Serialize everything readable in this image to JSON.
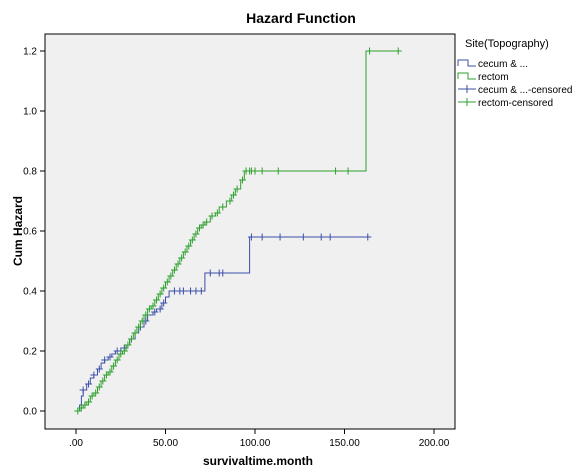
{
  "chart_data": {
    "type": "line",
    "title": "Hazard Function",
    "xlabel": "survivaltime.month",
    "ylabel": "Cum Hazard",
    "xlim": [
      0,
      200
    ],
    "ylim": [
      0,
      1.2
    ],
    "x_ticks": [
      ".00",
      "50.00",
      "100.00",
      "150.00",
      "200.00"
    ],
    "y_ticks": [
      "0.0",
      "0.2",
      "0.4",
      "0.6",
      "0.8",
      "1.0",
      "1.2"
    ],
    "x_tick_values": [
      0,
      50,
      100,
      150,
      200
    ],
    "y_tick_values": [
      0,
      0.2,
      0.4,
      0.6,
      0.8,
      1.0,
      1.2
    ],
    "grid": false,
    "plot_background": "#f0f0f0",
    "legend": {
      "title": "Site(Topography)",
      "placement": "right",
      "entries": [
        "cecum & ...",
        "rectom",
        "cecum & ...-censored",
        "rectom-censored"
      ]
    },
    "series": [
      {
        "name": "cecum & ...",
        "color": "#3c4fa8",
        "step": true,
        "points": [
          [
            0,
            0
          ],
          [
            2,
            0.02
          ],
          [
            3,
            0.05
          ],
          [
            4,
            0.07
          ],
          [
            6,
            0.09
          ],
          [
            8,
            0.11
          ],
          [
            10,
            0.12
          ],
          [
            12,
            0.14
          ],
          [
            14,
            0.16
          ],
          [
            16,
            0.17
          ],
          [
            18,
            0.18
          ],
          [
            20,
            0.19
          ],
          [
            22,
            0.2
          ],
          [
            25,
            0.21
          ],
          [
            28,
            0.22
          ],
          [
            30,
            0.24
          ],
          [
            33,
            0.26
          ],
          [
            35,
            0.28
          ],
          [
            38,
            0.3
          ],
          [
            40,
            0.32
          ],
          [
            43,
            0.33
          ],
          [
            45,
            0.34
          ],
          [
            48,
            0.36
          ],
          [
            50,
            0.38
          ],
          [
            52,
            0.4
          ],
          [
            72,
            0.46
          ],
          [
            97,
            0.58
          ],
          [
            163,
            0.58
          ]
        ],
        "censored_x": [
          4,
          7,
          10,
          13,
          16,
          19,
          23,
          27,
          31,
          36,
          39,
          44,
          47,
          49,
          55,
          58,
          60,
          64,
          67,
          70,
          75,
          80,
          82,
          98,
          104,
          114,
          127,
          137,
          142,
          163
        ]
      },
      {
        "name": "rectom",
        "color": "#2ea02e",
        "step": true,
        "points": [
          [
            0,
            0
          ],
          [
            2,
            0.01
          ],
          [
            4,
            0.02
          ],
          [
            6,
            0.03
          ],
          [
            8,
            0.05
          ],
          [
            10,
            0.06
          ],
          [
            12,
            0.08
          ],
          [
            14,
            0.1
          ],
          [
            16,
            0.12
          ],
          [
            18,
            0.13
          ],
          [
            20,
            0.15
          ],
          [
            22,
            0.17
          ],
          [
            24,
            0.19
          ],
          [
            26,
            0.2
          ],
          [
            28,
            0.22
          ],
          [
            30,
            0.24
          ],
          [
            32,
            0.26
          ],
          [
            34,
            0.28
          ],
          [
            36,
            0.3
          ],
          [
            38,
            0.32
          ],
          [
            40,
            0.34
          ],
          [
            42,
            0.35
          ],
          [
            44,
            0.37
          ],
          [
            46,
            0.39
          ],
          [
            48,
            0.41
          ],
          [
            50,
            0.43
          ],
          [
            52,
            0.45
          ],
          [
            54,
            0.47
          ],
          [
            56,
            0.49
          ],
          [
            58,
            0.51
          ],
          [
            60,
            0.53
          ],
          [
            62,
            0.55
          ],
          [
            64,
            0.57
          ],
          [
            66,
            0.59
          ],
          [
            68,
            0.61
          ],
          [
            70,
            0.62
          ],
          [
            72,
            0.63
          ],
          [
            75,
            0.65
          ],
          [
            78,
            0.66
          ],
          [
            80,
            0.68
          ],
          [
            84,
            0.7
          ],
          [
            87,
            0.72
          ],
          [
            89,
            0.74
          ],
          [
            92,
            0.77
          ],
          [
            94,
            0.8
          ],
          [
            162,
            1.2
          ],
          [
            180,
            1.2
          ]
        ],
        "censored_x": [
          1,
          3,
          5,
          7,
          9,
          11,
          13,
          15,
          17,
          19,
          21,
          23,
          25,
          27,
          29,
          31,
          33,
          35,
          37,
          39,
          41,
          43,
          45,
          47,
          49,
          51,
          53,
          55,
          57,
          59,
          61,
          63,
          65,
          67,
          69,
          71,
          73,
          76,
          79,
          82,
          86,
          88,
          90,
          93,
          95,
          97,
          98,
          100,
          104,
          113,
          145,
          152,
          164,
          180
        ]
      }
    ]
  }
}
